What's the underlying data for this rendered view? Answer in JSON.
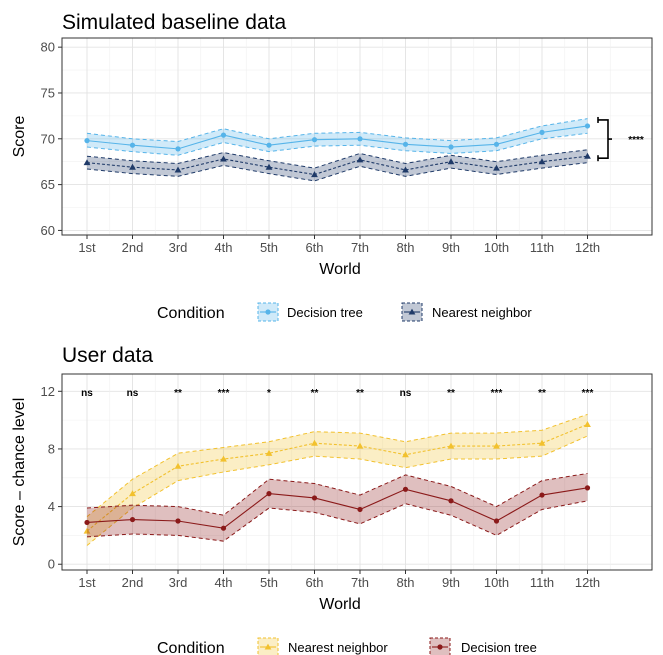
{
  "colors": {
    "decision_tree_baseline": "#56B4E9",
    "nearest_neighbor_baseline": "#1F3A68",
    "nearest_neighbor_user": "#F2C12E",
    "decision_tree_user": "#8B1A1A"
  },
  "chart_data": [
    {
      "type": "line",
      "title": "Simulated baseline data",
      "xlabel": "World",
      "ylabel": "Score",
      "categories": [
        "1st",
        "2nd",
        "3rd",
        "4th",
        "5th",
        "6th",
        "7th",
        "8th",
        "9th",
        "10th",
        "11th",
        "12th"
      ],
      "ylim": [
        59.5,
        81
      ],
      "yticks": [
        60,
        65,
        70,
        75,
        80
      ],
      "grid": true,
      "series": [
        {
          "name": "Decision tree",
          "values": [
            69.8,
            69.3,
            68.9,
            70.4,
            69.3,
            69.9,
            70.0,
            69.4,
            69.1,
            69.4,
            70.7,
            71.4
          ],
          "lower": [
            69.1,
            68.6,
            68.2,
            69.6,
            68.6,
            69.2,
            69.3,
            68.7,
            68.4,
            68.7,
            70.0,
            70.6
          ],
          "upper": [
            70.6,
            70.0,
            69.7,
            71.1,
            70.0,
            70.6,
            70.7,
            70.1,
            69.8,
            70.1,
            71.4,
            72.2
          ]
        },
        {
          "name": "Nearest neighbor",
          "values": [
            67.4,
            66.9,
            66.6,
            67.8,
            66.9,
            66.1,
            67.7,
            66.6,
            67.5,
            66.8,
            67.5,
            68.1
          ],
          "lower": [
            66.7,
            66.2,
            65.9,
            67.1,
            66.2,
            65.4,
            67.0,
            65.9,
            66.8,
            66.1,
            66.8,
            67.4
          ],
          "upper": [
            68.1,
            67.6,
            67.3,
            68.5,
            67.6,
            66.8,
            68.4,
            67.3,
            68.2,
            67.5,
            68.2,
            68.8
          ]
        }
      ],
      "annotation": "****",
      "legend": {
        "title": "Condition",
        "placement": "bottom",
        "items": [
          "Decision tree",
          "Nearest neighbor"
        ]
      }
    },
    {
      "type": "line",
      "title": "User data",
      "xlabel": "World",
      "ylabel": "Score – chance level",
      "categories": [
        "1st",
        "2nd",
        "3rd",
        "4th",
        "5th",
        "6th",
        "7th",
        "8th",
        "9th",
        "10th",
        "11th",
        "12th"
      ],
      "ylim": [
        -0.4,
        13.2
      ],
      "yticks": [
        0,
        4,
        8,
        12
      ],
      "grid": true,
      "significance": [
        "ns",
        "ns",
        "**",
        "***",
        "*",
        "**",
        "**",
        "ns",
        "**",
        "***",
        "**",
        "***"
      ],
      "series": [
        {
          "name": "Nearest neighbor",
          "values": [
            2.3,
            4.9,
            6.8,
            7.3,
            7.7,
            8.4,
            8.2,
            7.6,
            8.2,
            8.2,
            8.4,
            9.7
          ],
          "lower": [
            1.3,
            3.9,
            5.8,
            6.4,
            6.9,
            7.5,
            7.3,
            6.7,
            7.3,
            7.3,
            7.5,
            8.9
          ],
          "upper": [
            3.3,
            5.9,
            7.7,
            8.1,
            8.5,
            9.2,
            9.1,
            8.5,
            9.1,
            9.1,
            9.3,
            10.4
          ]
        },
        {
          "name": "Decision tree",
          "values": [
            2.9,
            3.1,
            3.0,
            2.5,
            4.9,
            4.6,
            3.8,
            5.2,
            4.4,
            3.0,
            4.8,
            5.3
          ],
          "lower": [
            1.9,
            2.1,
            2.0,
            1.6,
            3.9,
            3.6,
            2.8,
            4.2,
            3.4,
            2.0,
            3.8,
            4.4
          ],
          "upper": [
            3.9,
            4.1,
            4.0,
            3.4,
            5.9,
            5.6,
            4.8,
            6.2,
            5.4,
            4.0,
            5.8,
            6.3
          ]
        }
      ],
      "legend": {
        "title": "Condition",
        "placement": "bottom",
        "items": [
          "Nearest neighbor",
          "Decision tree"
        ]
      }
    }
  ]
}
